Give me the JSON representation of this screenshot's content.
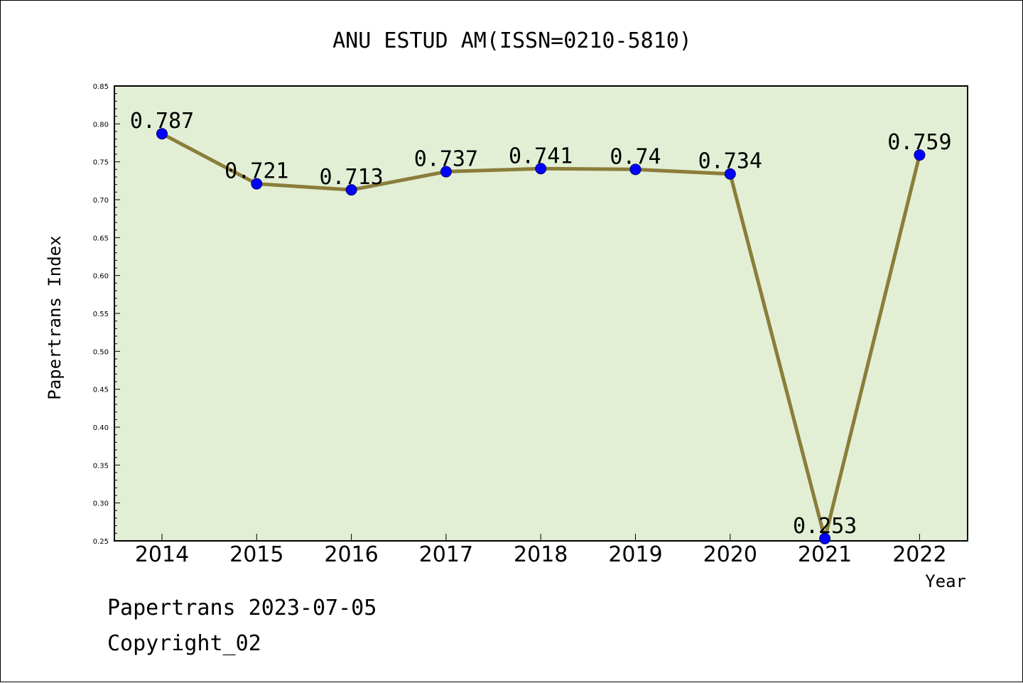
{
  "footer": {
    "line1": "Papertrans 2023-07-05",
    "line2": "Copyright_02"
  },
  "colors": {
    "plot_background": "#e2efd5",
    "line": "#8b7d3a",
    "marker": "#0000ff",
    "frame": "#000000"
  },
  "chart_data": {
    "type": "line",
    "title": "ANU ESTUD AM(ISSN=0210-5810)",
    "xlabel": "Year",
    "ylabel": "Papertrans Index",
    "categories": [
      "2014",
      "2015",
      "2016",
      "2017",
      "2018",
      "2019",
      "2020",
      "2021",
      "2022"
    ],
    "series": [
      {
        "values": [
          0.787,
          0.721,
          0.713,
          0.737,
          0.741,
          0.74,
          0.734,
          0.253,
          0.759
        ],
        "labels": [
          "0.787",
          "0.721",
          "0.713",
          "0.737",
          "0.741",
          "0.74",
          "0.734",
          "0.253",
          "0.759"
        ]
      }
    ],
    "ylim": [
      0.25,
      0.85
    ],
    "yticks": [
      "0.25",
      "0.30",
      "0.35",
      "0.40",
      "0.45",
      "0.50",
      "0.55",
      "0.60",
      "0.65",
      "0.70",
      "0.75",
      "0.80",
      "0.85"
    ],
    "grid": false,
    "legend": "none"
  }
}
